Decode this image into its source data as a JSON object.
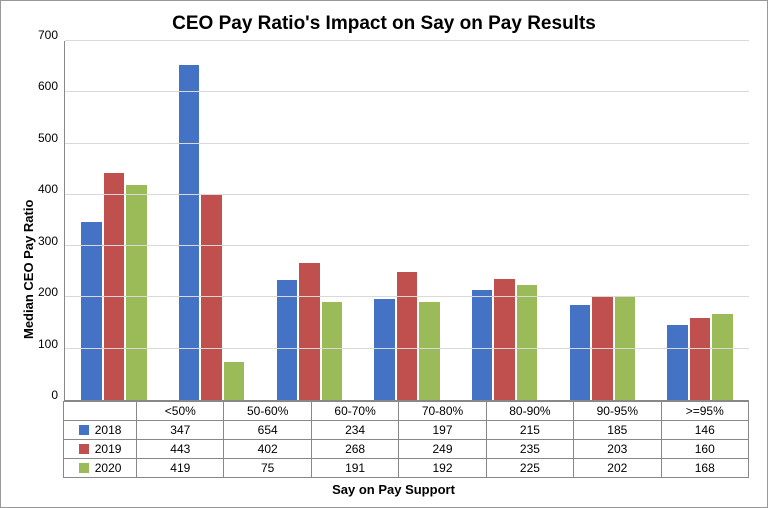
{
  "chart": {
    "type": "bar",
    "title": "CEO Pay Ratio's Impact on Say on Pay Results",
    "title_fontsize": 19,
    "ylabel": "Median CEO Pay Ratio",
    "xlabel": "Say on Pay Support",
    "label_fontsize": 13,
    "tick_fontsize": 12,
    "background_color": "#ffffff",
    "grid_color": "#d9d9d9",
    "axis_color": "#888888",
    "ylim": [
      0,
      700
    ],
    "ytick_step": 100,
    "yticks": [
      "0",
      "100",
      "200",
      "300",
      "400",
      "500",
      "600",
      "700"
    ],
    "categories": [
      "<50%",
      "50-60%",
      "60-70%",
      "70-80%",
      "80-90%",
      "90-95%",
      ">=95%"
    ],
    "series": [
      {
        "name": "2018",
        "color": "#4472c4",
        "values": [
          347,
          654,
          234,
          197,
          215,
          185,
          146
        ]
      },
      {
        "name": "2019",
        "color": "#c0504d",
        "values": [
          443,
          402,
          268,
          249,
          235,
          203,
          160
        ]
      },
      {
        "name": "2020",
        "color": "#9bbb59",
        "values": [
          419,
          75,
          191,
          192,
          225,
          202,
          168
        ]
      }
    ],
    "bar_group_width": 0.7
  }
}
